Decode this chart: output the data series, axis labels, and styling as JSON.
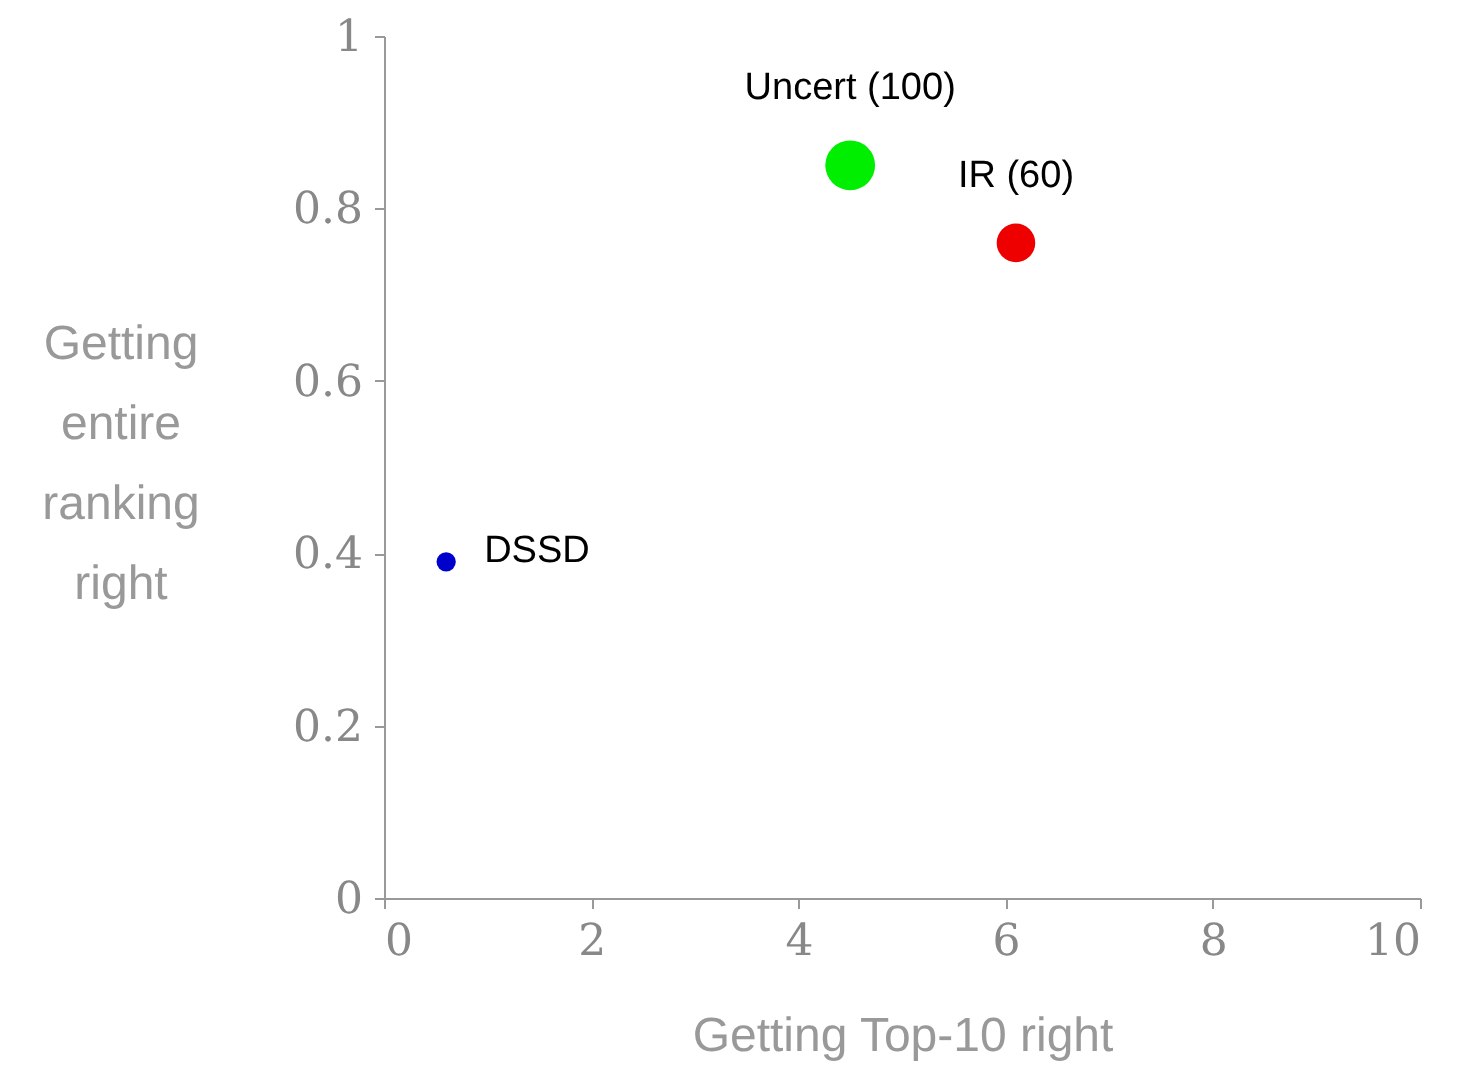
{
  "chart_data": {
    "type": "bubble",
    "xlabel": "Getting Top-10 right",
    "ylabel": "Getting entire ranking right",
    "x": [
      0.6,
      4.5,
      6.1
    ],
    "values": [
      0.39,
      0.85,
      0.76
    ],
    "sizes": [
      0.15,
      1,
      0.6
    ],
    "colors": [
      "#0000cc",
      "#00ee00",
      "#ee0000"
    ],
    "xlim": [
      0,
      10
    ],
    "xticks": [
      0,
      2,
      4,
      6,
      8,
      10
    ],
    "ylim": [
      0,
      1
    ],
    "yticks": [
      0,
      0.2,
      0.4,
      0.6,
      0.8,
      1
    ],
    "grid": false,
    "legend": false,
    "annotations": [
      {
        "text": "DSSD",
        "x": 0.6,
        "y": 0.39
      },
      {
        "text": "Uncert (100)",
        "x": 4.5,
        "y": 0.85
      },
      {
        "text": "IR (60)",
        "x": 6.1,
        "y": 0.76
      }
    ]
  }
}
